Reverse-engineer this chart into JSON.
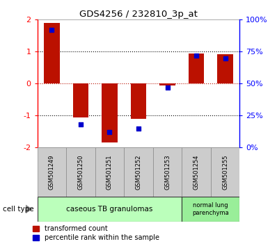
{
  "title": "GDS4256 / 232810_3p_at",
  "samples": [
    "GSM501249",
    "GSM501250",
    "GSM501251",
    "GSM501252",
    "GSM501253",
    "GSM501254",
    "GSM501255"
  ],
  "red_values": [
    1.9,
    -1.05,
    -1.85,
    -1.1,
    -0.05,
    0.95,
    0.93
  ],
  "blue_values_pct": [
    92,
    18,
    12,
    15,
    47,
    72,
    70
  ],
  "ylim_left": [
    -2,
    2
  ],
  "ylim_right": [
    0,
    100
  ],
  "yticks_left": [
    -2,
    -1,
    0,
    1,
    2
  ],
  "yticks_right": [
    0,
    25,
    50,
    75,
    100
  ],
  "ytick_labels_right": [
    "0%",
    "25%",
    "50%",
    "75%",
    "100%"
  ],
  "group1_label": "caseous TB granulomas",
  "group2_label": "normal lung\nparenchyma",
  "cell_type_label": "cell type",
  "legend_red": "transformed count",
  "legend_blue": "percentile rank within the sample",
  "bar_color_red": "#bb1100",
  "bar_color_blue": "#0000cc",
  "bar_width": 0.55,
  "group1_color": "#bbffbb",
  "group2_color": "#99ee99",
  "sample_box_color": "#cccccc",
  "bg_color": "#ffffff"
}
